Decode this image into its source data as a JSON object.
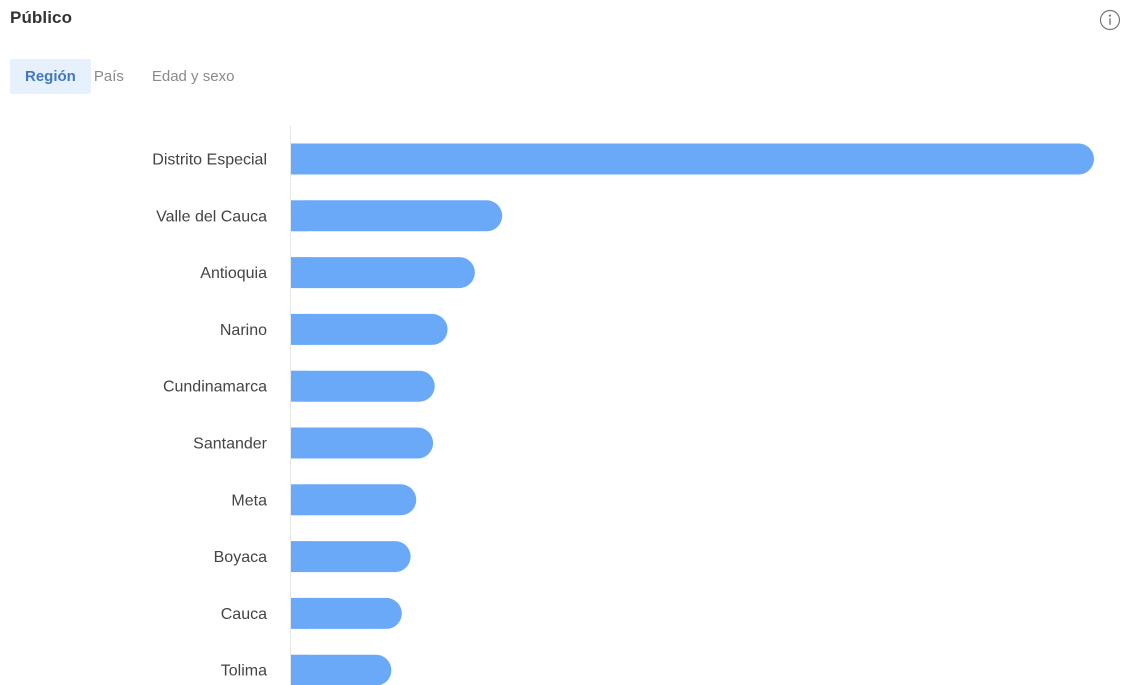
{
  "header": {
    "title": "Público",
    "info_icon": "info-circle-icon"
  },
  "tabs": [
    {
      "label": "Región",
      "active": true
    },
    {
      "label": "País",
      "active": false
    },
    {
      "label": "Edad y sexo",
      "active": false
    }
  ],
  "colors": {
    "bar": "#6aa9f8",
    "active_tab_bg": "#e7f1fd",
    "active_tab_text": "#3f78c2",
    "axis": "#e6e6e6",
    "label": "#444444"
  },
  "chart_data": {
    "type": "bar",
    "orientation": "horizontal",
    "categories": [
      "Distrito Especial",
      "Valle del Cauca",
      "Antioquia",
      "Narino",
      "Cundinamarca",
      "Santander",
      "Meta",
      "Boyaca",
      "Cauca",
      "Tolima"
    ],
    "values": [
      100,
      26.3,
      22.9,
      19.5,
      17.9,
      17.7,
      15.6,
      14.9,
      13.8,
      12.5
    ],
    "xlim": [
      0,
      100
    ],
    "title": "",
    "xlabel": "",
    "ylabel": "",
    "grid": false,
    "legend": "none"
  }
}
